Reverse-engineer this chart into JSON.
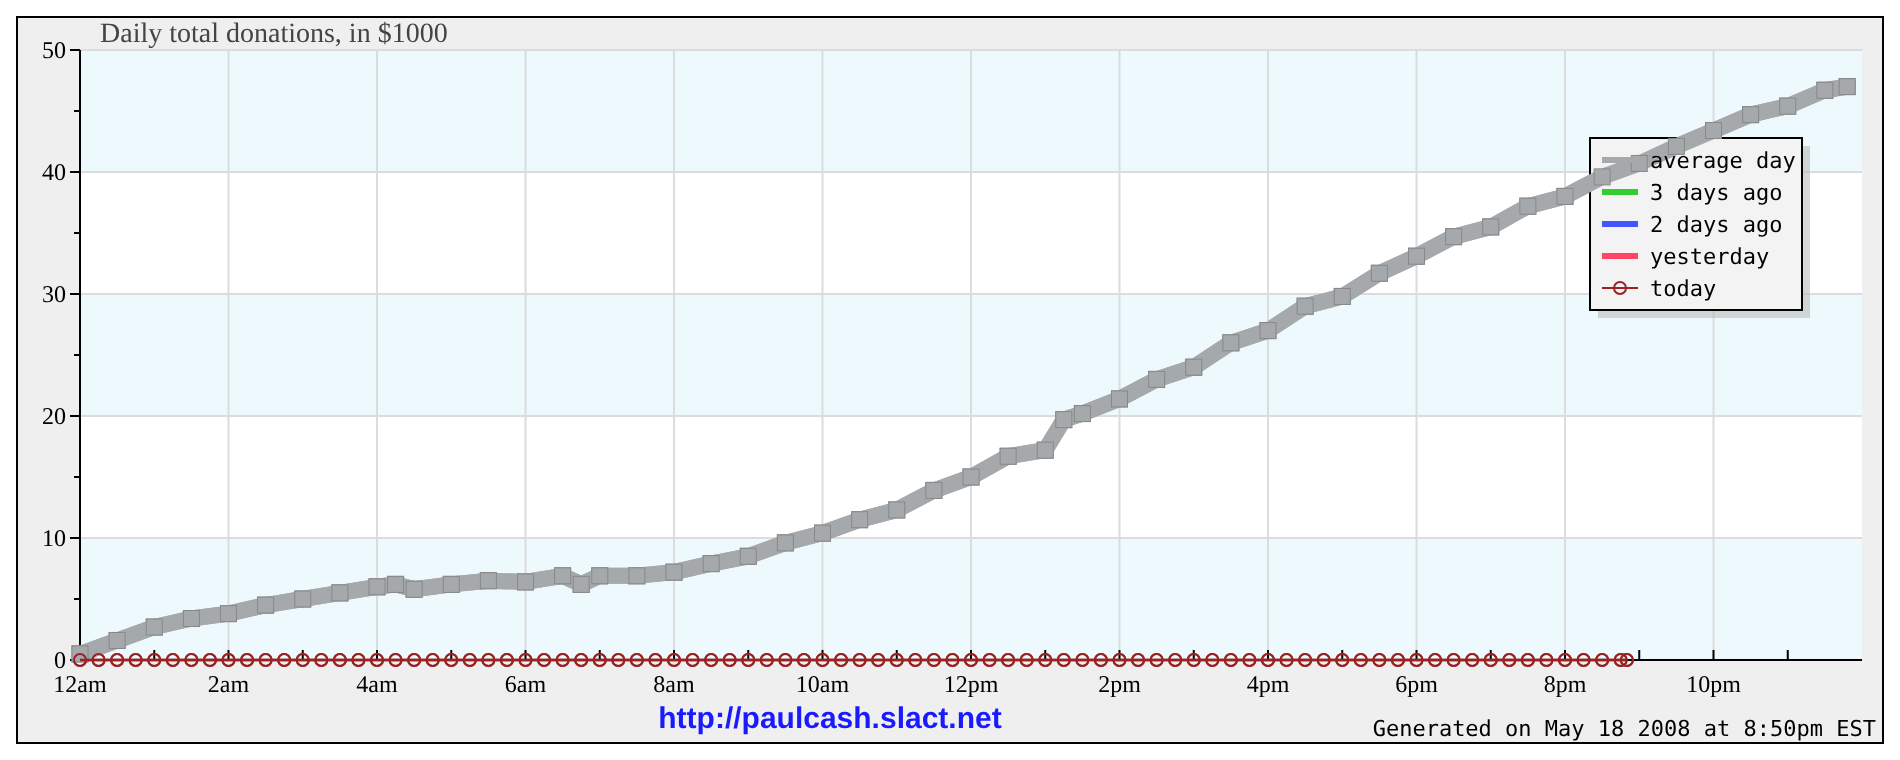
{
  "chart_data": {
    "type": "line",
    "title": "Daily total donations, in $1000",
    "annotations": [
      "http://paulcash.slact.net",
      "Generated on May 18 2008 at 8:50pm EST"
    ],
    "xlim": [
      "2008-05-18T00:00",
      "2008-05-19T00:00"
    ],
    "xticks": [
      {
        "value": "2008-05-18T00:00",
        "label": "12am"
      },
      {
        "value": "2008-05-18T01:00",
        "label": null
      },
      {
        "value": "2008-05-18T02:00",
        "label": "2am"
      },
      {
        "value": "2008-05-18T03:00",
        "label": null
      },
      {
        "value": "2008-05-18T04:00",
        "label": "4am"
      },
      {
        "value": "2008-05-18T05:00",
        "label": null
      },
      {
        "value": "2008-05-18T06:00",
        "label": "6am"
      },
      {
        "value": "2008-05-18T07:00",
        "label": null
      },
      {
        "value": "2008-05-18T08:00",
        "label": "8am"
      },
      {
        "value": "2008-05-18T09:00",
        "label": null
      },
      {
        "value": "2008-05-18T10:00",
        "label": "10am"
      },
      {
        "value": "2008-05-18T11:00",
        "label": null
      },
      {
        "value": "2008-05-18T12:00",
        "label": "12pm"
      },
      {
        "value": "2008-05-18T13:00",
        "label": null
      },
      {
        "value": "2008-05-18T14:00",
        "label": "2pm"
      },
      {
        "value": "2008-05-18T15:00",
        "label": null
      },
      {
        "value": "2008-05-18T16:00",
        "label": "4pm"
      },
      {
        "value": "2008-05-18T17:00",
        "label": null
      },
      {
        "value": "2008-05-18T18:00",
        "label": "6pm"
      },
      {
        "value": "2008-05-18T19:00",
        "label": null
      },
      {
        "value": "2008-05-18T20:00",
        "label": "8pm"
      },
      {
        "value": "2008-05-18T21:00",
        "label": null
      },
      {
        "value": "2008-05-18T22:00",
        "label": "10pm"
      },
      {
        "value": "2008-05-18T23:00",
        "label": null
      }
    ],
    "ylim": [
      0,
      50
    ],
    "yticks": [
      0,
      {
        "value": 5,
        "label": null
      },
      10,
      {
        "value": 15,
        "label": null
      },
      20,
      {
        "value": 25,
        "label": null
      },
      30,
      {
        "value": 35,
        "label": null
      },
      40,
      {
        "value": 45,
        "label": null
      },
      50
    ],
    "grid": true,
    "legend": "top right",
    "series": [
      {
        "name": "average day",
        "color": "#a6a9ab",
        "marker": "square",
        "x": [
          "2008-05-18T00:00",
          "2008-05-18T00:30",
          "2008-05-18T01:00",
          "2008-05-18T01:30",
          "2008-05-18T02:00",
          "2008-05-18T02:30",
          "2008-05-18T03:00",
          "2008-05-18T03:30",
          "2008-05-18T04:00",
          "2008-05-18T04:15",
          "2008-05-18T04:30",
          "2008-05-18T05:00",
          "2008-05-18T05:30",
          "2008-05-18T06:00",
          "2008-05-18T06:30",
          "2008-05-18T06:45",
          "2008-05-18T07:00",
          "2008-05-18T07:30",
          "2008-05-18T08:00",
          "2008-05-18T08:30",
          "2008-05-18T09:00",
          "2008-05-18T09:30",
          "2008-05-18T10:00",
          "2008-05-18T10:30",
          "2008-05-18T11:00",
          "2008-05-18T11:30",
          "2008-05-18T12:00",
          "2008-05-18T12:30",
          "2008-05-18T13:00",
          "2008-05-18T13:15",
          "2008-05-18T13:30",
          "2008-05-18T14:00",
          "2008-05-18T14:30",
          "2008-05-18T15:00",
          "2008-05-18T15:30",
          "2008-05-18T16:00",
          "2008-05-18T16:30",
          "2008-05-18T17:00",
          "2008-05-18T17:30",
          "2008-05-18T18:00",
          "2008-05-18T18:30",
          "2008-05-18T19:00",
          "2008-05-18T19:30",
          "2008-05-18T20:00",
          "2008-05-18T20:30",
          "2008-05-18T21:00",
          "2008-05-18T21:30",
          "2008-05-18T22:00",
          "2008-05-18T22:30",
          "2008-05-18T23:00",
          "2008-05-18T23:30",
          "2008-05-18T23:48"
        ],
        "values": [
          0.5,
          1.6,
          2.7,
          3.4,
          3.8,
          4.5,
          5.0,
          5.5,
          6.0,
          6.2,
          5.8,
          6.2,
          6.5,
          6.4,
          6.9,
          6.2,
          6.9,
          6.9,
          7.2,
          7.9,
          8.5,
          9.6,
          10.4,
          11.5,
          12.3,
          13.9,
          15.0,
          16.7,
          17.2,
          19.7,
          20.2,
          21.4,
          23.0,
          24.0,
          26.0,
          27.0,
          29.0,
          29.8,
          31.7,
          33.1,
          34.7,
          35.5,
          37.2,
          38.0,
          39.6,
          40.7,
          42.1,
          43.4,
          44.7,
          45.4,
          46.7,
          47.0
        ]
      },
      {
        "name": "3 days ago",
        "color": "#33cc33"
      },
      {
        "name": "2 days ago",
        "color": "#4455ff"
      },
      {
        "name": "yesterday",
        "color": "#ff4466"
      },
      {
        "name": "today",
        "color": "#992222",
        "marker": "circle",
        "x": [
          "2008-05-18T00:00",
          "2008-05-18T00:15",
          "2008-05-18T00:30",
          "2008-05-18T00:45",
          "2008-05-18T01:00",
          "2008-05-18T01:15",
          "2008-05-18T01:30",
          "2008-05-18T01:45",
          "2008-05-18T02:00",
          "2008-05-18T02:15",
          "2008-05-18T02:30",
          "2008-05-18T02:45",
          "2008-05-18T03:00",
          "2008-05-18T03:15",
          "2008-05-18T03:30",
          "2008-05-18T03:45",
          "2008-05-18T04:00",
          "2008-05-18T04:15",
          "2008-05-18T04:30",
          "2008-05-18T04:45",
          "2008-05-18T05:00",
          "2008-05-18T05:15",
          "2008-05-18T05:30",
          "2008-05-18T05:45",
          "2008-05-18T06:00",
          "2008-05-18T06:15",
          "2008-05-18T06:30",
          "2008-05-18T06:45",
          "2008-05-18T07:00",
          "2008-05-18T07:15",
          "2008-05-18T07:30",
          "2008-05-18T07:45",
          "2008-05-18T08:00",
          "2008-05-18T08:15",
          "2008-05-18T08:30",
          "2008-05-18T08:45",
          "2008-05-18T09:00",
          "2008-05-18T09:15",
          "2008-05-18T09:30",
          "2008-05-18T09:45",
          "2008-05-18T10:00",
          "2008-05-18T10:15",
          "2008-05-18T10:30",
          "2008-05-18T10:45",
          "2008-05-18T11:00",
          "2008-05-18T11:15",
          "2008-05-18T11:30",
          "2008-05-18T11:45",
          "2008-05-18T12:00",
          "2008-05-18T12:15",
          "2008-05-18T12:30",
          "2008-05-18T12:45",
          "2008-05-18T13:00",
          "2008-05-18T13:15",
          "2008-05-18T13:30",
          "2008-05-18T13:45",
          "2008-05-18T14:00",
          "2008-05-18T14:15",
          "2008-05-18T14:30",
          "2008-05-18T14:45",
          "2008-05-18T15:00",
          "2008-05-18T15:15",
          "2008-05-18T15:30",
          "2008-05-18T15:45",
          "2008-05-18T16:00",
          "2008-05-18T16:15",
          "2008-05-18T16:30",
          "2008-05-18T16:45",
          "2008-05-18T17:00",
          "2008-05-18T17:15",
          "2008-05-18T17:30",
          "2008-05-18T17:45",
          "2008-05-18T18:00",
          "2008-05-18T18:15",
          "2008-05-18T18:30",
          "2008-05-18T18:45",
          "2008-05-18T19:00",
          "2008-05-18T19:15",
          "2008-05-18T19:30",
          "2008-05-18T19:45",
          "2008-05-18T20:00",
          "2008-05-18T20:15",
          "2008-05-18T20:30",
          "2008-05-18T20:45",
          "2008-05-18T20:50"
        ],
        "values": [
          0,
          0,
          0,
          0,
          0,
          0,
          0,
          0,
          0,
          0,
          0,
          0,
          0,
          0,
          0,
          0,
          0,
          0,
          0,
          0,
          0,
          0,
          0,
          0,
          0,
          0,
          0,
          0,
          0,
          0,
          0,
          0,
          0,
          0,
          0,
          0,
          0,
          0,
          0,
          0,
          0,
          0,
          0,
          0,
          0,
          0,
          0,
          0,
          0,
          0,
          0,
          0,
          0,
          0,
          0,
          0,
          0,
          0,
          0,
          0,
          0,
          0,
          0,
          0,
          0,
          0,
          0,
          0,
          0,
          0,
          0,
          0,
          0,
          0,
          0,
          0,
          0,
          0,
          0,
          0,
          0,
          0,
          0,
          0,
          0
        ]
      }
    ]
  }
}
